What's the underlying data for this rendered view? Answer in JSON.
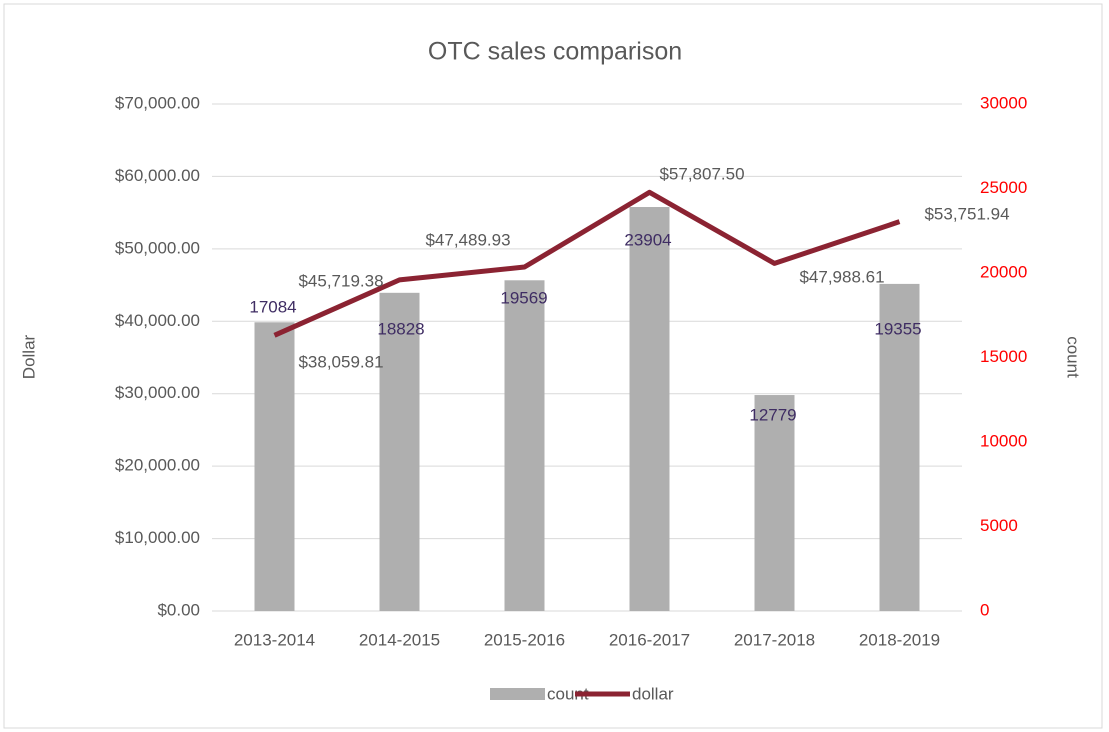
{
  "chart_data": {
    "type": "combo",
    "title": "OTC sales comparison",
    "y_label": "Dollar",
    "y2_label": "count",
    "categories": [
      "2013-2014",
      "2014-2015",
      "2015-2016",
      "2016-2017",
      "2017-2018",
      "2018-2019"
    ],
    "series": [
      {
        "name": "count",
        "type": "bar",
        "axis": "y2",
        "color": "#afafaf",
        "values": [
          17084,
          18828,
          19569,
          23904,
          12779,
          19355
        ]
      },
      {
        "name": "dollar",
        "type": "line",
        "axis": "y",
        "color": "#8b2332",
        "values": [
          38059.81,
          45719.38,
          47489.93,
          57807.5,
          47988.61,
          53751.94
        ],
        "value_labels": [
          "$38,059.81",
          "$45,719.38",
          "$47,489.93",
          "$57,807.50",
          "$47,988.61",
          "$53,751.94"
        ]
      }
    ],
    "ylim": [
      0,
      70000
    ],
    "yticks": [
      {
        "value": 0,
        "label": "$0.00"
      },
      {
        "value": 10000,
        "label": "$10,000.00"
      },
      {
        "value": 20000,
        "label": "$20,000.00"
      },
      {
        "value": 30000,
        "label": "$30,000.00"
      },
      {
        "value": 40000,
        "label": "$40,000.00"
      },
      {
        "value": 50000,
        "label": "$50,000.00"
      },
      {
        "value": 60000,
        "label": "$60,000.00"
      },
      {
        "value": 70000,
        "label": "$70,000.00"
      }
    ],
    "y2lim": [
      0,
      30000
    ],
    "y2ticks": [
      0,
      5000,
      10000,
      15000,
      20000,
      25000,
      30000
    ],
    "y2tick_color": "#ff0000",
    "count_label_color": "#3f2d63",
    "grid": true,
    "legend": "bottom"
  }
}
